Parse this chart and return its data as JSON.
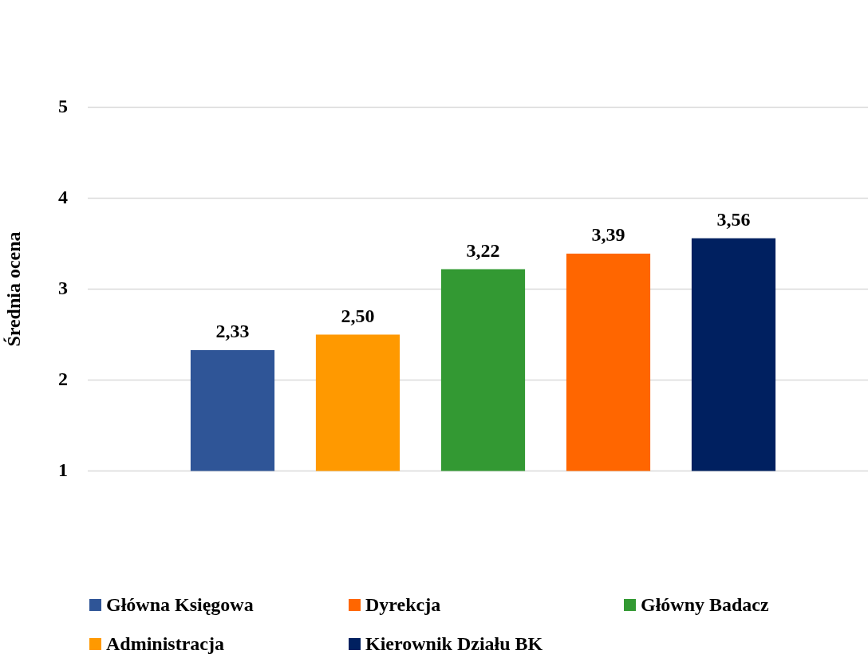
{
  "chart_data": {
    "type": "bar",
    "ylabel": "Średnia ocena",
    "categories": [
      null,
      null,
      null,
      null,
      null
    ],
    "series": [
      {
        "name": "Główna Księgowa",
        "color": "#2f5597",
        "values": [
          2.33,
          null,
          null,
          null,
          null
        ],
        "value_labels": [
          "2,33",
          null,
          null,
          null,
          null
        ]
      },
      {
        "name": "Dyrekcja",
        "color": "#ff6600",
        "values": [
          null,
          null,
          null,
          3.39,
          null
        ],
        "value_labels": [
          null,
          null,
          null,
          "3,39",
          null
        ]
      },
      {
        "name": "Główny Badacz",
        "color": "#339933",
        "values": [
          null,
          null,
          3.22,
          null,
          null
        ],
        "value_labels": [
          null,
          null,
          "3,22",
          null,
          null
        ]
      },
      {
        "name": "Administracja",
        "color": "#ff9900",
        "values": [
          null,
          2.5,
          null,
          null,
          null
        ],
        "value_labels": [
          null,
          "2,50",
          null,
          null,
          null
        ]
      },
      {
        "name": "Kierownik Działu BK",
        "color": "#002060",
        "values": [
          null,
          null,
          null,
          null,
          3.56
        ],
        "value_labels": [
          null,
          null,
          null,
          null,
          "3,56"
        ]
      }
    ],
    "ylim": [
      1,
      5
    ],
    "yticks": [
      1,
      2,
      3,
      4,
      5
    ],
    "grid": "y",
    "legend": "bottom"
  }
}
